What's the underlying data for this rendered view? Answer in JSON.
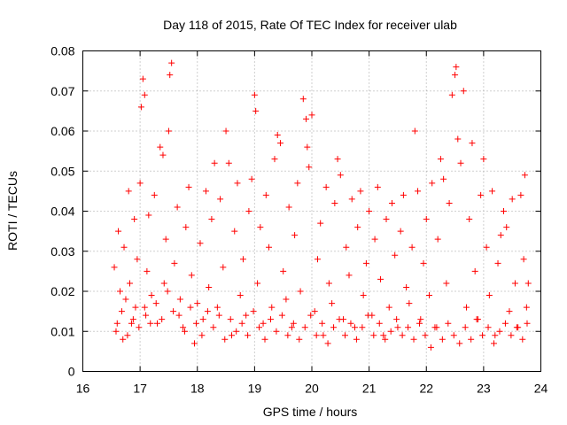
{
  "chart_data": {
    "type": "scatter",
    "title": "Day 118 of 2015, Rate Of TEC Index for receiver ulab",
    "xlabel": "GPS time / hours",
    "ylabel": "ROTI / TECUs",
    "xlim": [
      16,
      24
    ],
    "ylim": [
      0,
      0.08
    ],
    "x_ticks": [
      "16",
      "17",
      "18",
      "19",
      "20",
      "21",
      "22",
      "23",
      "24"
    ],
    "y_ticks": [
      "0",
      "0.01",
      "0.02",
      "0.03",
      "0.04",
      "0.05",
      "0.06",
      "0.07",
      "0.08"
    ],
    "grid": true,
    "marker": "+",
    "series": [
      {
        "name": "ROTI",
        "color": "#ff0000",
        "points": [
          [
            16.55,
            0.026
          ],
          [
            16.6,
            0.012
          ],
          [
            16.62,
            0.035
          ],
          [
            16.65,
            0.02
          ],
          [
            16.7,
            0.008
          ],
          [
            16.72,
            0.031
          ],
          [
            16.75,
            0.018
          ],
          [
            16.8,
            0.045
          ],
          [
            16.82,
            0.022
          ],
          [
            16.85,
            0.012
          ],
          [
            16.9,
            0.038
          ],
          [
            16.92,
            0.016
          ],
          [
            16.95,
            0.028
          ],
          [
            17.0,
            0.047
          ],
          [
            17.02,
            0.066
          ],
          [
            17.05,
            0.073
          ],
          [
            17.08,
            0.069
          ],
          [
            17.1,
            0.014
          ],
          [
            17.12,
            0.025
          ],
          [
            17.15,
            0.039
          ],
          [
            17.2,
            0.019
          ],
          [
            17.25,
            0.044
          ],
          [
            17.3,
            0.012
          ],
          [
            17.35,
            0.056
          ],
          [
            17.4,
            0.054
          ],
          [
            17.42,
            0.022
          ],
          [
            17.45,
            0.033
          ],
          [
            17.5,
            0.06
          ],
          [
            17.52,
            0.074
          ],
          [
            17.55,
            0.077
          ],
          [
            17.58,
            0.015
          ],
          [
            17.6,
            0.027
          ],
          [
            17.65,
            0.041
          ],
          [
            17.7,
            0.018
          ],
          [
            17.75,
            0.011
          ],
          [
            17.8,
            0.036
          ],
          [
            17.85,
            0.046
          ],
          [
            17.9,
            0.024
          ],
          [
            17.95,
            0.007
          ],
          [
            18.0,
            0.017
          ],
          [
            18.05,
            0.032
          ],
          [
            18.1,
            0.013
          ],
          [
            18.15,
            0.045
          ],
          [
            18.2,
            0.021
          ],
          [
            18.25,
            0.038
          ],
          [
            18.3,
            0.052
          ],
          [
            18.35,
            0.016
          ],
          [
            18.4,
            0.043
          ],
          [
            18.45,
            0.026
          ],
          [
            18.5,
            0.06
          ],
          [
            18.55,
            0.052
          ],
          [
            18.6,
            0.009
          ],
          [
            18.65,
            0.035
          ],
          [
            18.7,
            0.047
          ],
          [
            18.75,
            0.019
          ],
          [
            18.8,
            0.028
          ],
          [
            18.85,
            0.014
          ],
          [
            18.9,
            0.04
          ],
          [
            18.95,
            0.048
          ],
          [
            19.0,
            0.069
          ],
          [
            19.02,
            0.065
          ],
          [
            19.05,
            0.022
          ],
          [
            19.1,
            0.036
          ],
          [
            19.15,
            0.012
          ],
          [
            19.2,
            0.044
          ],
          [
            19.25,
            0.031
          ],
          [
            19.3,
            0.016
          ],
          [
            19.35,
            0.053
          ],
          [
            19.4,
            0.059
          ],
          [
            19.45,
            0.057
          ],
          [
            19.5,
            0.025
          ],
          [
            19.55,
            0.018
          ],
          [
            19.6,
            0.041
          ],
          [
            19.65,
            0.011
          ],
          [
            19.7,
            0.034
          ],
          [
            19.75,
            0.047
          ],
          [
            19.8,
            0.02
          ],
          [
            19.85,
            0.068
          ],
          [
            19.9,
            0.063
          ],
          [
            19.92,
            0.056
          ],
          [
            19.95,
            0.051
          ],
          [
            20.0,
            0.064
          ],
          [
            20.05,
            0.015
          ],
          [
            20.1,
            0.028
          ],
          [
            20.15,
            0.037
          ],
          [
            20.2,
            0.009
          ],
          [
            20.25,
            0.046
          ],
          [
            20.3,
            0.022
          ],
          [
            20.35,
            0.017
          ],
          [
            20.4,
            0.042
          ],
          [
            20.45,
            0.053
          ],
          [
            20.5,
            0.049
          ],
          [
            20.55,
            0.013
          ],
          [
            20.6,
            0.031
          ],
          [
            20.65,
            0.024
          ],
          [
            20.7,
            0.043
          ],
          [
            20.75,
            0.011
          ],
          [
            20.8,
            0.036
          ],
          [
            20.85,
            0.045
          ],
          [
            20.9,
            0.019
          ],
          [
            20.95,
            0.027
          ],
          [
            21.0,
            0.04
          ],
          [
            21.05,
            0.014
          ],
          [
            21.1,
            0.033
          ],
          [
            21.15,
            0.046
          ],
          [
            21.2,
            0.023
          ],
          [
            21.25,
            0.009
          ],
          [
            21.3,
            0.038
          ],
          [
            21.35,
            0.016
          ],
          [
            21.4,
            0.042
          ],
          [
            21.45,
            0.029
          ],
          [
            21.5,
            0.011
          ],
          [
            21.55,
            0.035
          ],
          [
            21.6,
            0.044
          ],
          [
            21.65,
            0.021
          ],
          [
            21.7,
            0.017
          ],
          [
            21.75,
            0.031
          ],
          [
            21.8,
            0.06
          ],
          [
            21.85,
            0.045
          ],
          [
            21.9,
            0.013
          ],
          [
            21.95,
            0.027
          ],
          [
            22.0,
            0.038
          ],
          [
            22.05,
            0.019
          ],
          [
            22.1,
            0.047
          ],
          [
            22.15,
            0.011
          ],
          [
            22.2,
            0.033
          ],
          [
            22.25,
            0.053
          ],
          [
            22.3,
            0.048
          ],
          [
            22.35,
            0.022
          ],
          [
            22.4,
            0.042
          ],
          [
            22.45,
            0.069
          ],
          [
            22.5,
            0.074
          ],
          [
            22.52,
            0.076
          ],
          [
            22.55,
            0.058
          ],
          [
            22.6,
            0.052
          ],
          [
            22.65,
            0.07
          ],
          [
            22.7,
            0.016
          ],
          [
            22.75,
            0.038
          ],
          [
            22.8,
            0.057
          ],
          [
            22.85,
            0.025
          ],
          [
            22.9,
            0.013
          ],
          [
            22.95,
            0.044
          ],
          [
            23.0,
            0.053
          ],
          [
            23.05,
            0.031
          ],
          [
            23.1,
            0.019
          ],
          [
            23.15,
            0.045
          ],
          [
            23.2,
            0.009
          ],
          [
            23.25,
            0.027
          ],
          [
            23.3,
            0.034
          ],
          [
            23.35,
            0.04
          ],
          [
            23.4,
            0.036
          ],
          [
            23.45,
            0.015
          ],
          [
            23.5,
            0.043
          ],
          [
            23.55,
            0.022
          ],
          [
            23.6,
            0.011
          ],
          [
            23.65,
            0.044
          ],
          [
            23.7,
            0.028
          ],
          [
            23.72,
            0.049
          ],
          [
            23.75,
            0.016
          ],
          [
            23.78,
            0.022
          ],
          [
            16.58,
            0.01
          ],
          [
            16.68,
            0.015
          ],
          [
            16.78,
            0.009
          ],
          [
            16.88,
            0.013
          ],
          [
            16.98,
            0.011
          ],
          [
            17.08,
            0.016
          ],
          [
            17.18,
            0.012
          ],
          [
            17.28,
            0.017
          ],
          [
            17.38,
            0.013
          ],
          [
            17.48,
            0.02
          ],
          [
            17.68,
            0.014
          ],
          [
            17.78,
            0.01
          ],
          [
            17.88,
            0.016
          ],
          [
            17.98,
            0.012
          ],
          [
            18.08,
            0.009
          ],
          [
            18.18,
            0.015
          ],
          [
            18.28,
            0.011
          ],
          [
            18.38,
            0.014
          ],
          [
            18.48,
            0.008
          ],
          [
            18.58,
            0.013
          ],
          [
            18.68,
            0.01
          ],
          [
            18.78,
            0.012
          ],
          [
            18.88,
            0.009
          ],
          [
            18.98,
            0.015
          ],
          [
            19.08,
            0.011
          ],
          [
            19.18,
            0.008
          ],
          [
            19.28,
            0.013
          ],
          [
            19.38,
            0.01
          ],
          [
            19.48,
            0.014
          ],
          [
            19.58,
            0.009
          ],
          [
            19.68,
            0.012
          ],
          [
            19.78,
            0.008
          ],
          [
            19.88,
            0.011
          ],
          [
            19.98,
            0.014
          ],
          [
            20.08,
            0.009
          ],
          [
            20.18,
            0.012
          ],
          [
            20.28,
            0.007
          ],
          [
            20.38,
            0.011
          ],
          [
            20.48,
            0.013
          ],
          [
            20.58,
            0.009
          ],
          [
            20.68,
            0.012
          ],
          [
            20.78,
            0.008
          ],
          [
            20.88,
            0.011
          ],
          [
            20.98,
            0.014
          ],
          [
            21.08,
            0.009
          ],
          [
            21.18,
            0.012
          ],
          [
            21.28,
            0.008
          ],
          [
            21.38,
            0.01
          ],
          [
            21.48,
            0.013
          ],
          [
            21.58,
            0.009
          ],
          [
            21.68,
            0.011
          ],
          [
            21.78,
            0.008
          ],
          [
            21.88,
            0.012
          ],
          [
            21.98,
            0.009
          ],
          [
            22.08,
            0.006
          ],
          [
            22.18,
            0.011
          ],
          [
            22.28,
            0.008
          ],
          [
            22.38,
            0.012
          ],
          [
            22.48,
            0.009
          ],
          [
            22.58,
            0.007
          ],
          [
            22.68,
            0.011
          ],
          [
            22.78,
            0.008
          ],
          [
            22.88,
            0.013
          ],
          [
            22.98,
            0.009
          ],
          [
            23.08,
            0.011
          ],
          [
            23.18,
            0.007
          ],
          [
            23.28,
            0.01
          ],
          [
            23.38,
            0.012
          ],
          [
            23.48,
            0.009
          ],
          [
            23.58,
            0.011
          ],
          [
            23.68,
            0.008
          ],
          [
            23.76,
            0.012
          ]
        ]
      }
    ]
  }
}
